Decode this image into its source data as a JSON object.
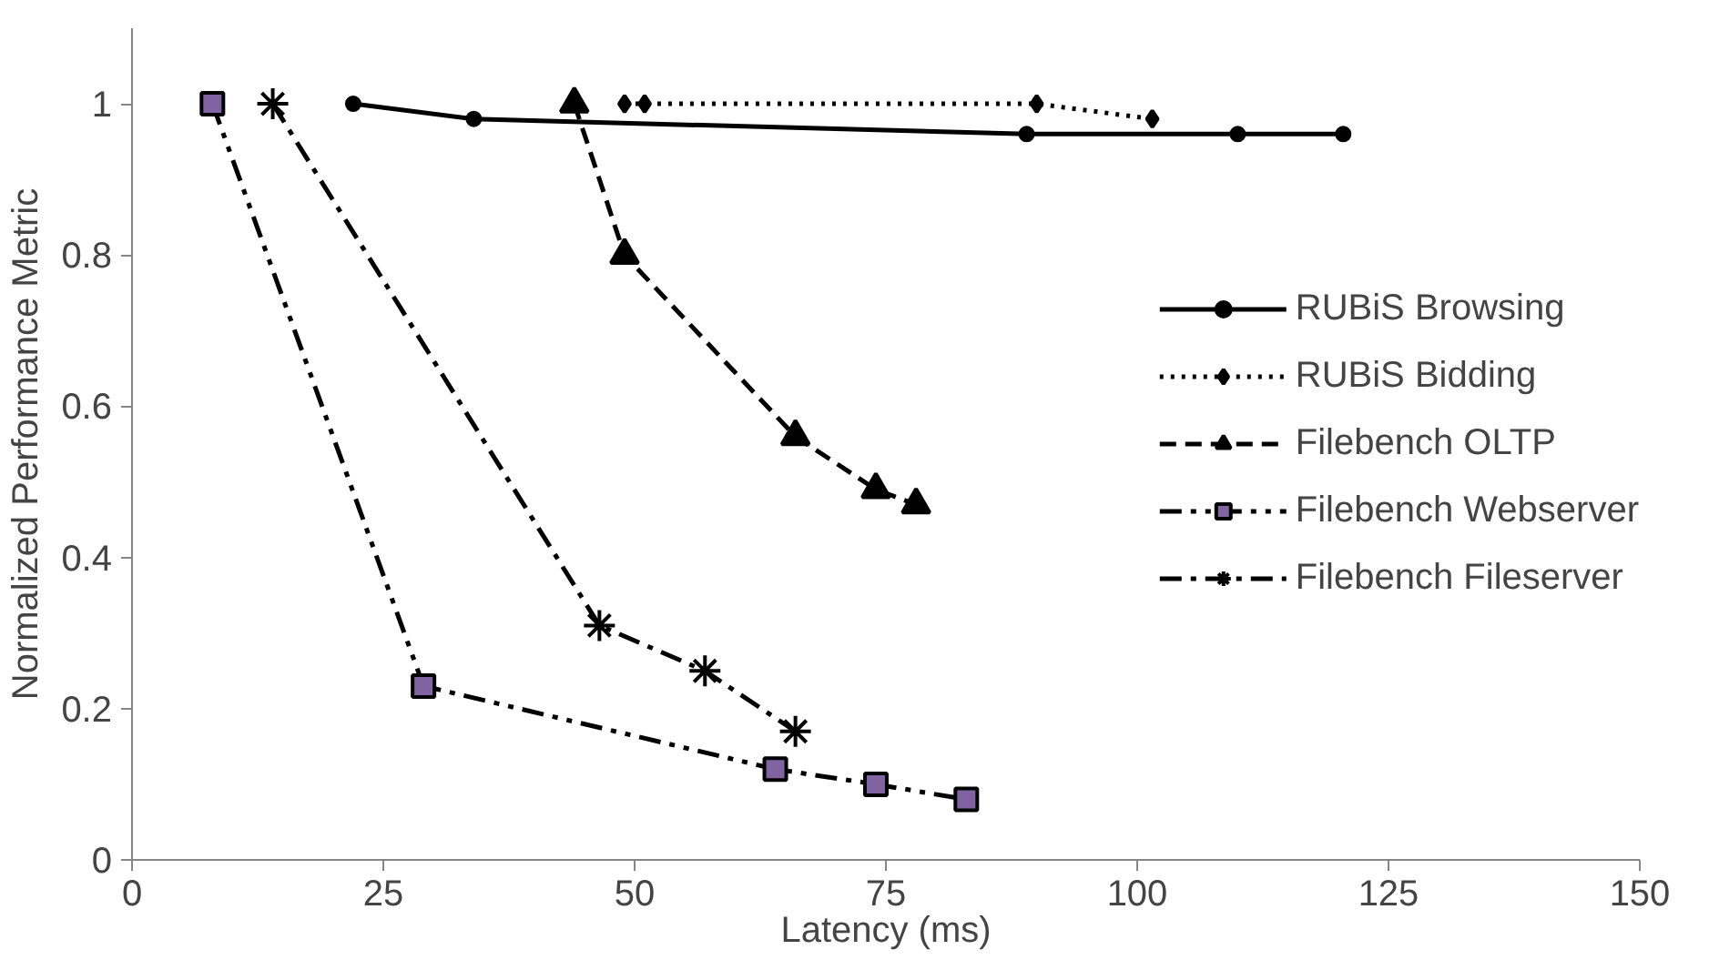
{
  "chart_data": {
    "type": "line",
    "xlabel": "Latency (ms)",
    "ylabel": "Normalized Performance Metric",
    "xlim": [
      0,
      150
    ],
    "xticks": [
      0,
      25,
      50,
      75,
      100,
      125,
      150
    ],
    "ylim": [
      0,
      1.1
    ],
    "yticks": [
      0,
      0.2,
      0.4,
      0.6,
      0.8,
      1
    ],
    "grid": false,
    "legend": "right",
    "series": [
      {
        "name": "RUBiS Browsing",
        "color": "#000000",
        "marker": "circle",
        "line_style": "solid",
        "x": [
          22,
          34,
          89,
          110,
          120.5
        ],
        "values": [
          1,
          0.98,
          0.96,
          0.96,
          0.96
        ]
      },
      {
        "name": "RUBiS Bidding",
        "color": "#000000",
        "marker": "diamond",
        "line_style": "dotted",
        "x": [
          49,
          51,
          90,
          101.5
        ],
        "values": [
          1,
          1,
          1,
          0.98
        ]
      },
      {
        "name": "Filebench OLTP",
        "color": "#000000",
        "marker": "triangle",
        "line_style": "dashed",
        "x": [
          44,
          49,
          66,
          74,
          78
        ],
        "values": [
          1,
          0.8,
          0.56,
          0.49,
          0.47
        ]
      },
      {
        "name": "Filebench Webserver",
        "color": "#000000",
        "marker": "square",
        "line_style": "dashdotdot",
        "x": [
          8,
          29,
          64,
          74,
          83
        ],
        "values": [
          1,
          0.23,
          0.12,
          0.1,
          0.08
        ]
      },
      {
        "name": "Filebench Fileserver",
        "color": "#000000",
        "marker": "cross",
        "line_style": "dashdot",
        "x": [
          14,
          46.5,
          57,
          66
        ],
        "values": [
          1,
          0.31,
          0.25,
          0.17
        ]
      }
    ]
  }
}
